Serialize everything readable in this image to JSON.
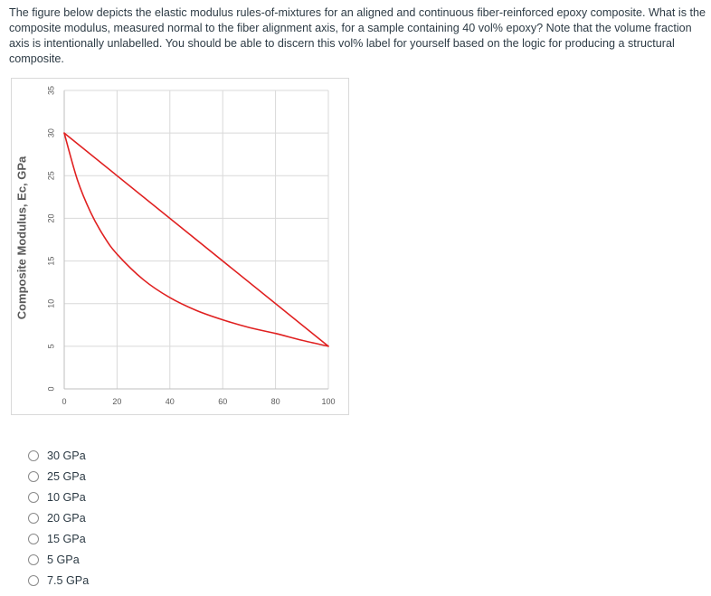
{
  "question": {
    "text": "The figure below depicts the elastic modulus rules-of-mixtures for an aligned and continuous fiber-reinforced epoxy composite. What is the composite modulus, measured normal to the fiber alignment axis, for a sample containing 40 vol% epoxy? Note that the volume fraction axis is intentionally unlabelled. You should be able to discern this vol% label for yourself based on the logic for producing a structural composite."
  },
  "chart_data": {
    "type": "line",
    "title": "",
    "xlabel": "",
    "ylabel": "Composite Modulus, Ec, GPa",
    "xlim": [
      0,
      100
    ],
    "ylim": [
      0,
      35
    ],
    "x_ticks": [
      0,
      20,
      40,
      60,
      80,
      100
    ],
    "y_ticks": [
      0,
      5,
      10,
      15,
      20,
      25,
      30,
      35
    ],
    "grid": true,
    "series": [
      {
        "color": "#e02020",
        "x": [
          0,
          100
        ],
        "y": [
          30,
          5
        ]
      },
      {
        "color": "#e02020",
        "x": [
          0,
          5,
          10,
          15,
          20,
          30,
          40,
          50,
          60,
          70,
          80,
          90,
          100
        ],
        "y": [
          30,
          24.5,
          20.7,
          17.9,
          15.8,
          12.8,
          10.7,
          9.2,
          8.1,
          7.2,
          6.5,
          5.7,
          5
        ]
      }
    ]
  },
  "options": [
    {
      "label": "30 GPa"
    },
    {
      "label": "25 GPa"
    },
    {
      "label": "10 GPa"
    },
    {
      "label": "20 GPa"
    },
    {
      "label": "15 GPa"
    },
    {
      "label": "5 GPa"
    },
    {
      "label": "7.5 GPa"
    }
  ]
}
